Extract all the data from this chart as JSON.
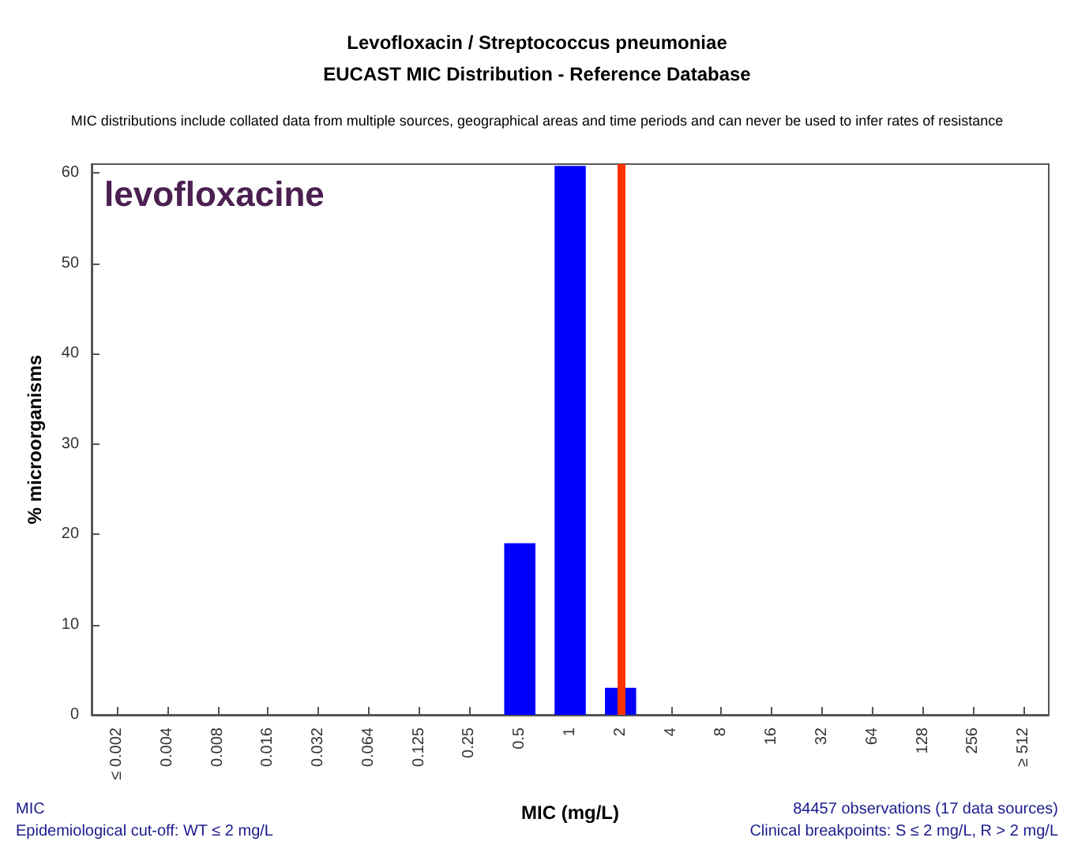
{
  "chart_data": {
    "type": "bar",
    "title": "Levofloxacin / Streptococcus pneumoniae",
    "subtitle": "EUCAST MIC Distribution - Reference Database",
    "xlabel": "MIC (mg/L)",
    "ylabel": "% microorganisms",
    "categories": [
      "≤ 0.002",
      "0.004",
      "0.008",
      "0.016",
      "0.032",
      "0.064",
      "0.125",
      "0.25",
      "0.5",
      "1",
      "2",
      "4",
      "8",
      "16",
      "32",
      "64",
      "128",
      "256",
      "≥ 512"
    ],
    "values": [
      0,
      0,
      0,
      0,
      0,
      0,
      0,
      0,
      19,
      60.8,
      3,
      0,
      0,
      0,
      0,
      0,
      0,
      0,
      0
    ],
    "color": "#0000ff",
    "ylim": [
      0,
      61
    ],
    "yticks": [
      0,
      10,
      20,
      30,
      40,
      50,
      60
    ],
    "grid": false,
    "ref_lines": [
      {
        "axis": "x",
        "value": "2",
        "color": "#ff3300"
      }
    ],
    "annotations": [
      "MIC distributions include collated data from multiple sources, geographical areas and time periods and can never be used to infer rates of resistance",
      "levofloxacine",
      "MIC",
      "Epidemiological cut-off: WT ≤ 2 mg/L",
      "84457 observations (17 data sources)",
      "Clinical breakpoints: S ≤ 2 mg/L, R > 2 mg/L"
    ]
  }
}
